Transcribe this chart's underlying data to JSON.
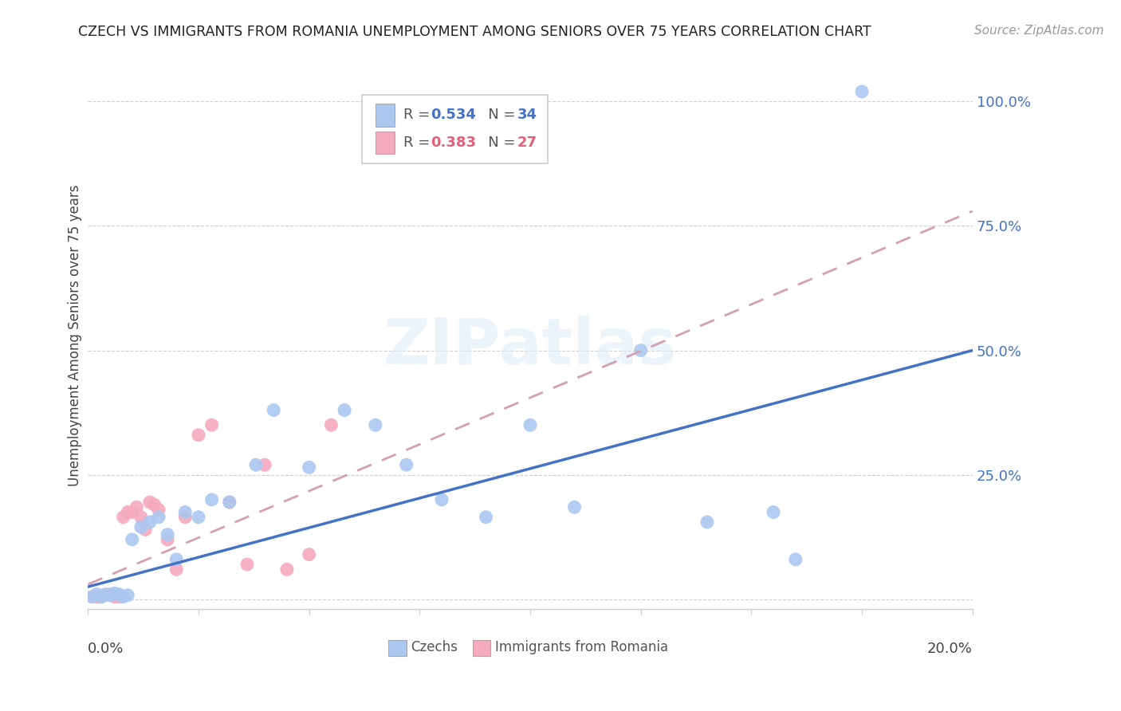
{
  "title": "CZECH VS IMMIGRANTS FROM ROMANIA UNEMPLOYMENT AMONG SENIORS OVER 75 YEARS CORRELATION CHART",
  "source": "Source: ZipAtlas.com",
  "ylabel": "Unemployment Among Seniors over 75 years",
  "xlim": [
    0.0,
    0.2
  ],
  "ylim": [
    -0.02,
    1.08
  ],
  "ytick_positions": [
    0.0,
    0.25,
    0.5,
    0.75,
    1.0
  ],
  "ytick_labels": [
    "",
    "25.0%",
    "50.0%",
    "75.0%",
    "100.0%"
  ],
  "watermark_text": "ZIPatlas",
  "legend_r1": "R = 0.534",
  "legend_n1": "N = 34",
  "legend_r2": "R = 0.383",
  "legend_n2": "N = 27",
  "czechs_color": "#aac8f0",
  "romania_color": "#f5aabe",
  "czechs_line_color": "#4472c4",
  "romania_line_color": "#d4a0b0",
  "czechs_label": "Czechs",
  "romania_label": "Immigrants from Romania",
  "czechs_x": [
    0.001,
    0.002,
    0.003,
    0.004,
    0.005,
    0.006,
    0.007,
    0.008,
    0.009,
    0.01,
    0.012,
    0.014,
    0.016,
    0.018,
    0.02,
    0.022,
    0.025,
    0.028,
    0.032,
    0.038,
    0.042,
    0.05,
    0.058,
    0.065,
    0.072,
    0.08,
    0.09,
    0.1,
    0.11,
    0.125,
    0.14,
    0.155,
    0.16,
    0.175
  ],
  "czechs_y": [
    0.005,
    0.01,
    0.005,
    0.01,
    0.008,
    0.012,
    0.01,
    0.005,
    0.008,
    0.12,
    0.145,
    0.155,
    0.165,
    0.13,
    0.08,
    0.175,
    0.165,
    0.2,
    0.195,
    0.27,
    0.38,
    0.265,
    0.38,
    0.35,
    0.27,
    0.2,
    0.165,
    0.35,
    0.185,
    0.5,
    0.155,
    0.175,
    0.08,
    1.02
  ],
  "romania_x": [
    0.001,
    0.002,
    0.003,
    0.004,
    0.005,
    0.006,
    0.007,
    0.008,
    0.009,
    0.01,
    0.011,
    0.012,
    0.013,
    0.014,
    0.015,
    0.016,
    0.018,
    0.02,
    0.022,
    0.025,
    0.028,
    0.032,
    0.036,
    0.04,
    0.045,
    0.05,
    0.055
  ],
  "romania_y": [
    0.005,
    0.005,
    0.005,
    0.008,
    0.01,
    0.005,
    0.005,
    0.165,
    0.175,
    0.175,
    0.185,
    0.165,
    0.14,
    0.195,
    0.19,
    0.18,
    0.12,
    0.06,
    0.165,
    0.33,
    0.35,
    0.195,
    0.07,
    0.27,
    0.06,
    0.09,
    0.35
  ],
  "czechs_line_x0": 0.0,
  "czechs_line_y0": 0.025,
  "czechs_line_x1": 0.2,
  "czechs_line_y1": 0.5,
  "romania_line_x0": 0.0,
  "romania_line_y0": 0.03,
  "romania_line_x1": 0.2,
  "romania_line_y1": 0.78,
  "background_color": "#ffffff",
  "grid_color": "#d0d0d0"
}
